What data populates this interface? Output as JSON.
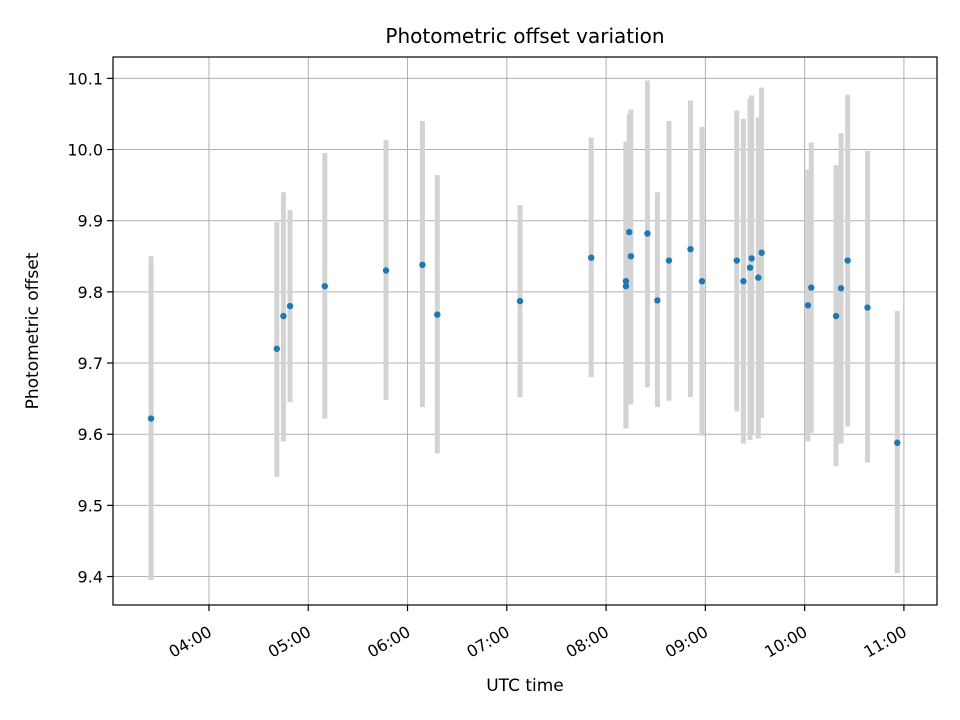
{
  "chart_data": {
    "type": "scatter",
    "title": "Photometric offset variation",
    "xlabel": "UTC time",
    "ylabel": "Photometric offset",
    "xlim": [
      "03:02",
      "11:20"
    ],
    "ylim": [
      9.36,
      10.13
    ],
    "x_ticks": [
      "04:00",
      "05:00",
      "06:00",
      "07:00",
      "08:00",
      "09:00",
      "10:00",
      "11:00"
    ],
    "y_ticks": [
      "9.4",
      "9.5",
      "9.6",
      "9.7",
      "9.8",
      "9.9",
      "10.0",
      "10.1"
    ],
    "grid": true,
    "colors": {
      "point": "#1f77b4",
      "errorbar": "#d3d3d3",
      "grid": "#b0b0b0"
    },
    "points": [
      {
        "x": "03:25",
        "y": 9.622,
        "yerr_low": 9.395,
        "yerr_high": 9.85
      },
      {
        "x": "04:41",
        "y": 9.72,
        "yerr_low": 9.54,
        "yerr_high": 9.898
      },
      {
        "x": "04:45",
        "y": 9.766,
        "yerr_low": 9.59,
        "yerr_high": 9.94
      },
      {
        "x": "04:49",
        "y": 9.78,
        "yerr_low": 9.645,
        "yerr_high": 9.915
      },
      {
        "x": "05:10",
        "y": 9.808,
        "yerr_low": 9.622,
        "yerr_high": 9.995
      },
      {
        "x": "05:47",
        "y": 9.83,
        "yerr_low": 9.648,
        "yerr_high": 10.013
      },
      {
        "x": "06:09",
        "y": 9.838,
        "yerr_low": 9.638,
        "yerr_high": 10.04
      },
      {
        "x": "06:18",
        "y": 9.768,
        "yerr_low": 9.573,
        "yerr_high": 9.964
      },
      {
        "x": "07:08",
        "y": 9.787,
        "yerr_low": 9.652,
        "yerr_high": 9.922
      },
      {
        "x": "07:51",
        "y": 9.848,
        "yerr_low": 9.68,
        "yerr_high": 10.017
      },
      {
        "x": "08:12",
        "y": 9.815,
        "yerr_low": 9.608,
        "yerr_high": 10.011
      },
      {
        "x": "08:12",
        "y": 9.808,
        "yerr_low": 9.608,
        "yerr_high": 10.011
      },
      {
        "x": "08:14",
        "y": 9.884,
        "yerr_low": 9.642,
        "yerr_high": 10.05
      },
      {
        "x": "08:15",
        "y": 9.85,
        "yerr_low": 9.642,
        "yerr_high": 10.056
      },
      {
        "x": "08:25",
        "y": 9.882,
        "yerr_low": 9.666,
        "yerr_high": 10.097
      },
      {
        "x": "08:31",
        "y": 9.788,
        "yerr_low": 9.638,
        "yerr_high": 9.94
      },
      {
        "x": "08:38",
        "y": 9.844,
        "yerr_low": 9.647,
        "yerr_high": 10.04
      },
      {
        "x": "08:51",
        "y": 9.86,
        "yerr_low": 9.652,
        "yerr_high": 10.069
      },
      {
        "x": "08:58",
        "y": 9.815,
        "yerr_low": 9.598,
        "yerr_high": 10.032
      },
      {
        "x": "09:19",
        "y": 9.844,
        "yerr_low": 9.632,
        "yerr_high": 10.055
      },
      {
        "x": "09:23",
        "y": 9.815,
        "yerr_low": 9.587,
        "yerr_high": 10.043
      },
      {
        "x": "09:27",
        "y": 9.834,
        "yerr_low": 9.592,
        "yerr_high": 10.071
      },
      {
        "x": "09:28",
        "y": 9.847,
        "yerr_low": 9.6,
        "yerr_high": 10.076
      },
      {
        "x": "09:32",
        "y": 9.82,
        "yerr_low": 9.594,
        "yerr_high": 10.045
      },
      {
        "x": "09:34",
        "y": 9.855,
        "yerr_low": 9.623,
        "yerr_high": 10.087
      },
      {
        "x": "10:02",
        "y": 9.781,
        "yerr_low": 9.59,
        "yerr_high": 9.972
      },
      {
        "x": "10:04",
        "y": 9.806,
        "yerr_low": 9.602,
        "yerr_high": 10.01
      },
      {
        "x": "10:19",
        "y": 9.766,
        "yerr_low": 9.555,
        "yerr_high": 9.978
      },
      {
        "x": "10:22",
        "y": 9.805,
        "yerr_low": 9.587,
        "yerr_high": 10.023
      },
      {
        "x": "10:26",
        "y": 9.844,
        "yerr_low": 9.611,
        "yerr_high": 10.077
      },
      {
        "x": "10:38",
        "y": 9.778,
        "yerr_low": 9.56,
        "yerr_high": 9.998
      },
      {
        "x": "10:56",
        "y": 9.588,
        "yerr_low": 9.405,
        "yerr_high": 9.773
      }
    ]
  }
}
